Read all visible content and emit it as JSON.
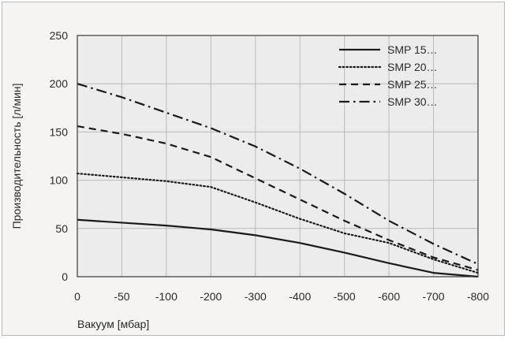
{
  "chart_data": {
    "type": "line",
    "title": "",
    "xlabel": "Вакуум [мбар]",
    "ylabel": "Производительность [л/мин]",
    "x": [
      0,
      -50,
      -100,
      -200,
      -300,
      -400,
      -500,
      -600,
      -700,
      -800
    ],
    "x_tick_labels": [
      "0",
      "-50",
      "-100",
      "-200",
      "-300",
      "-400",
      "-500",
      "-600",
      "-700",
      "-800"
    ],
    "y_ticks": [
      0,
      50,
      100,
      150,
      200,
      250
    ],
    "ylim": [
      0,
      250
    ],
    "grid": true,
    "legend_position": "top-right",
    "series": [
      {
        "name": "SMP 15…",
        "dash": "solid",
        "color": "#1a1a1a",
        "values": [
          59,
          56,
          53,
          49,
          43,
          35,
          25,
          14,
          4,
          0
        ]
      },
      {
        "name": "SMP 20…",
        "dash": "dotted",
        "color": "#1a1a1a",
        "values": [
          107,
          103,
          99,
          93,
          77,
          60,
          45,
          35,
          18,
          4
        ]
      },
      {
        "name": "SMP 25…",
        "dash": "dashed",
        "color": "#1a1a1a",
        "values": [
          156,
          148,
          138,
          124,
          102,
          80,
          58,
          38,
          20,
          7
        ]
      },
      {
        "name": "SMP 30…",
        "dash": "dashdot",
        "color": "#1a1a1a",
        "values": [
          200,
          186,
          170,
          154,
          135,
          112,
          86,
          58,
          34,
          13
        ]
      }
    ]
  }
}
